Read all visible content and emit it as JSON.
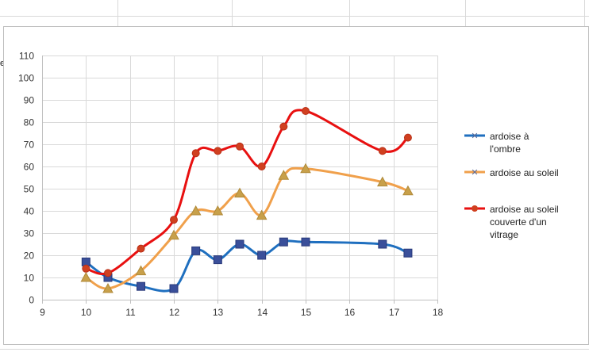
{
  "sheet": {
    "left_fragment": "e"
  },
  "chart_data": {
    "type": "line",
    "xlim": [
      9,
      18
    ],
    "ylim": [
      0,
      110
    ],
    "x_ticks": [
      "9",
      "10",
      "11",
      "12",
      "13",
      "14",
      "15",
      "16",
      "17",
      "18"
    ],
    "y_ticks": [
      "0",
      "10",
      "20",
      "30",
      "40",
      "50",
      "60",
      "70",
      "80",
      "90",
      "100",
      "110"
    ],
    "grid": true,
    "legend_position": "right",
    "series": [
      {
        "name": "ardoise à l'ombre",
        "name_lines": [
          "ardoise à",
          "l'ombre"
        ],
        "color": "#1f6fbf",
        "marker": "square",
        "marker_color": "#3a4f9a",
        "x": [
          10,
          10.5,
          11.25,
          12,
          12.5,
          13,
          13.5,
          14,
          14.5,
          15,
          16.75,
          17.33
        ],
        "y": [
          17,
          10,
          6,
          5,
          22,
          18,
          25,
          20,
          26,
          26,
          25,
          21
        ]
      },
      {
        "name": "ardoise au soleil",
        "name_lines": [
          "ardoise au soleil"
        ],
        "color": "#f0a04b",
        "marker": "triangle",
        "marker_color": "#c8a04a",
        "x": [
          10,
          10.5,
          11.25,
          12,
          12.5,
          13,
          13.5,
          14,
          14.5,
          15,
          16.75,
          17.33
        ],
        "y": [
          10,
          5,
          13,
          29,
          40,
          40,
          48,
          38,
          56,
          59,
          53,
          49
        ]
      },
      {
        "name": "ardoise au soleil couverte d'un vitrage",
        "name_lines": [
          "ardoise au soleil",
          "couverte d'un",
          "vitrage"
        ],
        "color": "#e81010",
        "marker": "circle",
        "marker_color": "#d04020",
        "x": [
          10,
          10.5,
          11.25,
          12,
          12.5,
          13,
          13.5,
          14,
          14.5,
          15,
          16.75,
          17.33
        ],
        "y": [
          14,
          12,
          23,
          36,
          66,
          67,
          69,
          60,
          78,
          85,
          67,
          73
        ]
      }
    ]
  }
}
